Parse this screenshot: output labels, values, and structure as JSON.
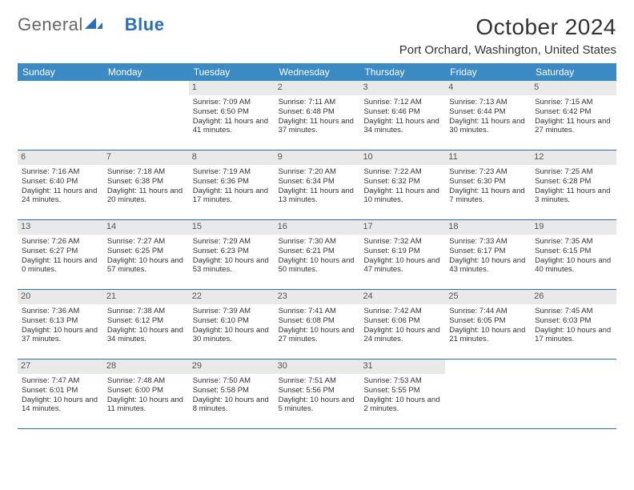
{
  "brand": {
    "part1": "General",
    "part2": "Blue"
  },
  "title": "October 2024",
  "location": "Port Orchard, Washington, United States",
  "colors": {
    "header_bg": "#3b8ac4",
    "rule": "#2a6eb8",
    "daynum_bg": "#e9e9e9",
    "text": "#333333"
  },
  "dow": [
    "Sunday",
    "Monday",
    "Tuesday",
    "Wednesday",
    "Thursday",
    "Friday",
    "Saturday"
  ],
  "weeks": [
    [
      {
        "n": "",
        "lines": []
      },
      {
        "n": "",
        "lines": []
      },
      {
        "n": "1",
        "lines": [
          "Sunrise: 7:09 AM",
          "Sunset: 6:50 PM",
          "Daylight: 11 hours and 41 minutes."
        ]
      },
      {
        "n": "2",
        "lines": [
          "Sunrise: 7:11 AM",
          "Sunset: 6:48 PM",
          "Daylight: 11 hours and 37 minutes."
        ]
      },
      {
        "n": "3",
        "lines": [
          "Sunrise: 7:12 AM",
          "Sunset: 6:46 PM",
          "Daylight: 11 hours and 34 minutes."
        ]
      },
      {
        "n": "4",
        "lines": [
          "Sunrise: 7:13 AM",
          "Sunset: 6:44 PM",
          "Daylight: 11 hours and 30 minutes."
        ]
      },
      {
        "n": "5",
        "lines": [
          "Sunrise: 7:15 AM",
          "Sunset: 6:42 PM",
          "Daylight: 11 hours and 27 minutes."
        ]
      }
    ],
    [
      {
        "n": "6",
        "lines": [
          "Sunrise: 7:16 AM",
          "Sunset: 6:40 PM",
          "Daylight: 11 hours and 24 minutes."
        ]
      },
      {
        "n": "7",
        "lines": [
          "Sunrise: 7:18 AM",
          "Sunset: 6:38 PM",
          "Daylight: 11 hours and 20 minutes."
        ]
      },
      {
        "n": "8",
        "lines": [
          "Sunrise: 7:19 AM",
          "Sunset: 6:36 PM",
          "Daylight: 11 hours and 17 minutes."
        ]
      },
      {
        "n": "9",
        "lines": [
          "Sunrise: 7:20 AM",
          "Sunset: 6:34 PM",
          "Daylight: 11 hours and 13 minutes."
        ]
      },
      {
        "n": "10",
        "lines": [
          "Sunrise: 7:22 AM",
          "Sunset: 6:32 PM",
          "Daylight: 11 hours and 10 minutes."
        ]
      },
      {
        "n": "11",
        "lines": [
          "Sunrise: 7:23 AM",
          "Sunset: 6:30 PM",
          "Daylight: 11 hours and 7 minutes."
        ]
      },
      {
        "n": "12",
        "lines": [
          "Sunrise: 7:25 AM",
          "Sunset: 6:28 PM",
          "Daylight: 11 hours and 3 minutes."
        ]
      }
    ],
    [
      {
        "n": "13",
        "lines": [
          "Sunrise: 7:26 AM",
          "Sunset: 6:27 PM",
          "Daylight: 11 hours and 0 minutes."
        ]
      },
      {
        "n": "14",
        "lines": [
          "Sunrise: 7:27 AM",
          "Sunset: 6:25 PM",
          "Daylight: 10 hours and 57 minutes."
        ]
      },
      {
        "n": "15",
        "lines": [
          "Sunrise: 7:29 AM",
          "Sunset: 6:23 PM",
          "Daylight: 10 hours and 53 minutes."
        ]
      },
      {
        "n": "16",
        "lines": [
          "Sunrise: 7:30 AM",
          "Sunset: 6:21 PM",
          "Daylight: 10 hours and 50 minutes."
        ]
      },
      {
        "n": "17",
        "lines": [
          "Sunrise: 7:32 AM",
          "Sunset: 6:19 PM",
          "Daylight: 10 hours and 47 minutes."
        ]
      },
      {
        "n": "18",
        "lines": [
          "Sunrise: 7:33 AM",
          "Sunset: 6:17 PM",
          "Daylight: 10 hours and 43 minutes."
        ]
      },
      {
        "n": "19",
        "lines": [
          "Sunrise: 7:35 AM",
          "Sunset: 6:15 PM",
          "Daylight: 10 hours and 40 minutes."
        ]
      }
    ],
    [
      {
        "n": "20",
        "lines": [
          "Sunrise: 7:36 AM",
          "Sunset: 6:13 PM",
          "Daylight: 10 hours and 37 minutes."
        ]
      },
      {
        "n": "21",
        "lines": [
          "Sunrise: 7:38 AM",
          "Sunset: 6:12 PM",
          "Daylight: 10 hours and 34 minutes."
        ]
      },
      {
        "n": "22",
        "lines": [
          "Sunrise: 7:39 AM",
          "Sunset: 6:10 PM",
          "Daylight: 10 hours and 30 minutes."
        ]
      },
      {
        "n": "23",
        "lines": [
          "Sunrise: 7:41 AM",
          "Sunset: 6:08 PM",
          "Daylight: 10 hours and 27 minutes."
        ]
      },
      {
        "n": "24",
        "lines": [
          "Sunrise: 7:42 AM",
          "Sunset: 6:06 PM",
          "Daylight: 10 hours and 24 minutes."
        ]
      },
      {
        "n": "25",
        "lines": [
          "Sunrise: 7:44 AM",
          "Sunset: 6:05 PM",
          "Daylight: 10 hours and 21 minutes."
        ]
      },
      {
        "n": "26",
        "lines": [
          "Sunrise: 7:45 AM",
          "Sunset: 6:03 PM",
          "Daylight: 10 hours and 17 minutes."
        ]
      }
    ],
    [
      {
        "n": "27",
        "lines": [
          "Sunrise: 7:47 AM",
          "Sunset: 6:01 PM",
          "Daylight: 10 hours and 14 minutes."
        ]
      },
      {
        "n": "28",
        "lines": [
          "Sunrise: 7:48 AM",
          "Sunset: 6:00 PM",
          "Daylight: 10 hours and 11 minutes."
        ]
      },
      {
        "n": "29",
        "lines": [
          "Sunrise: 7:50 AM",
          "Sunset: 5:58 PM",
          "Daylight: 10 hours and 8 minutes."
        ]
      },
      {
        "n": "30",
        "lines": [
          "Sunrise: 7:51 AM",
          "Sunset: 5:56 PM",
          "Daylight: 10 hours and 5 minutes."
        ]
      },
      {
        "n": "31",
        "lines": [
          "Sunrise: 7:53 AM",
          "Sunset: 5:55 PM",
          "Daylight: 10 hours and 2 minutes."
        ]
      },
      {
        "n": "",
        "lines": []
      },
      {
        "n": "",
        "lines": []
      }
    ]
  ]
}
